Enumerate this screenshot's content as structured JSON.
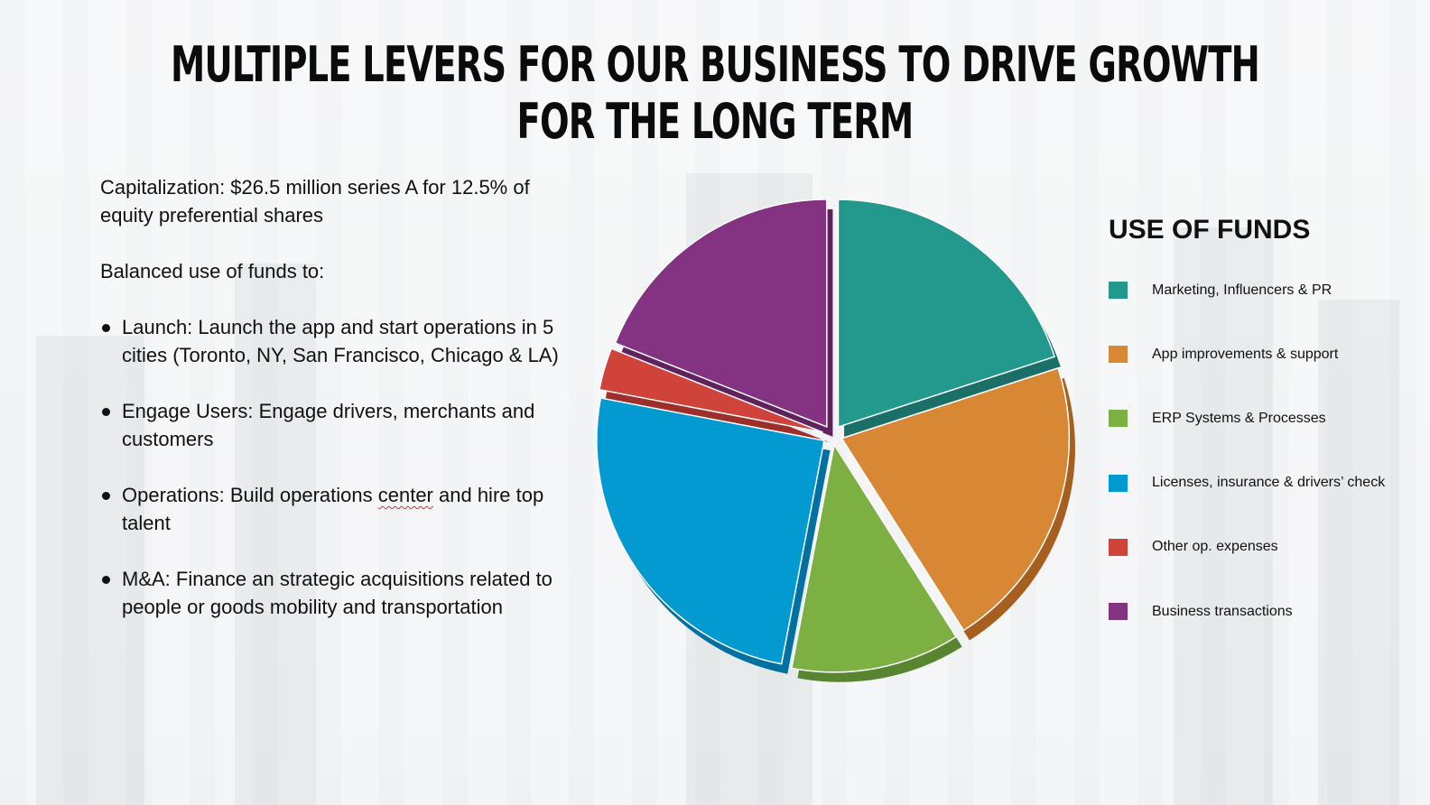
{
  "title": "MULTIPLE LEVERS FOR OUR BUSINESS TO DRIVE GROWTH FOR THE LONG TERM",
  "intro": {
    "capitalization": "Capitalization: $26.5 million series A for 12.5% of equity preferential shares",
    "balanced": "Balanced use of funds to:"
  },
  "bullets": [
    {
      "text": "Launch: Launch the app and start operations in 5 cities (Toronto, NY, San Francisco, Chicago & LA)"
    },
    {
      "text_before": "Engage Users: Engage drivers, merchants and customers"
    },
    {
      "pre": "Operations: Build operations ",
      "flag": "center",
      "post": " and hire top talent"
    },
    {
      "text": "M&A: Finance an strategic acquisitions related to people or goods mobility and transportation"
    }
  ],
  "chart_data": {
    "type": "pie",
    "title": "USE OF FUNDS",
    "legend_position": "right",
    "slices": [
      {
        "label": "Marketing, Influencers & PR",
        "value": 20,
        "color": "#23998d",
        "side": "#1a7066"
      },
      {
        "label": "App improvements & support",
        "value": 21,
        "color": "#d88834",
        "side": "#a65f1f"
      },
      {
        "label": "ERP Systems & Processes",
        "value": 12,
        "color": "#7cb042",
        "side": "#5a8530"
      },
      {
        "label": "Licenses, insurance & drivers’ check",
        "value": 25,
        "color": "#0399d1",
        "side": "#0270a0"
      },
      {
        "label": "Other op. expenses",
        "value": 3,
        "color": "#d0433b",
        "side": "#9c2f29"
      },
      {
        "label": "Business transactions",
        "value": 19,
        "color": "#843282",
        "side": "#5e225d"
      }
    ]
  }
}
